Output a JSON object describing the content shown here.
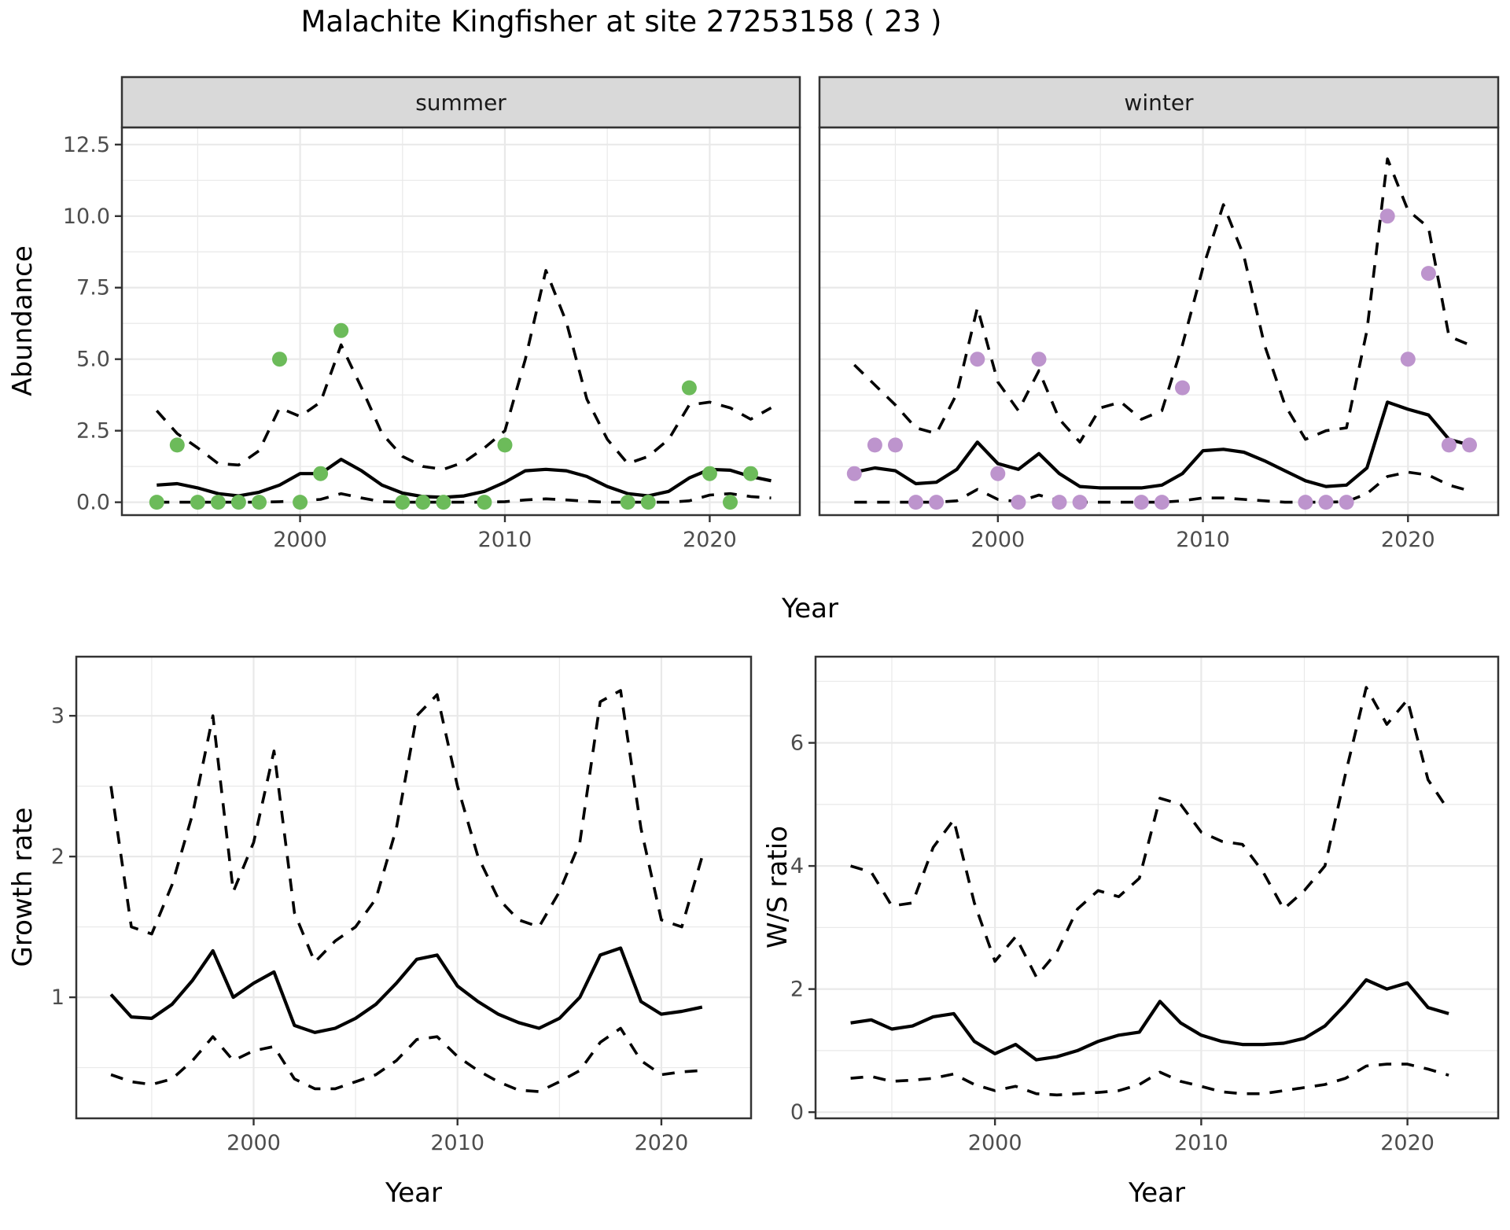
{
  "title": "Malachite Kingfisher at site 27253158 ( 23 )",
  "colors": {
    "summer_points": "#6cbb5a",
    "winter_points": "#bd94cd",
    "line": "#000000",
    "strip_bg": "#d9d9d9",
    "panel_border": "#333333",
    "grid": "#e9e9e9",
    "tick_mark": "#333333",
    "tick_label": "#4d4d4d",
    "panel_bg": "#ffffff"
  },
  "chart_data": [
    {
      "id": "abundance-summer",
      "type": "line",
      "facet_label": "summer",
      "xlabel": "Year",
      "ylabel": "Abundance",
      "xlim": [
        1991.3,
        2024.4
      ],
      "ylim": [
        -0.45,
        13.1
      ],
      "x_ticks": {
        "values": [
          2000,
          2010,
          2020
        ],
        "labels": [
          "2000",
          "2010",
          "2020"
        ]
      },
      "x_minor": [
        1995,
        2005,
        2015
      ],
      "y_ticks": {
        "values": [
          0,
          2.5,
          5,
          7.5,
          10,
          12.5
        ],
        "labels": [
          "0.0",
          "2.5",
          "5.0",
          "7.5",
          "10.0",
          "12.5"
        ]
      },
      "y_minor": [
        1.25,
        3.75,
        6.25,
        8.75,
        11.25
      ],
      "grid": true,
      "legend": false,
      "x": [
        1993,
        1994,
        1995,
        1996,
        1997,
        1998,
        1999,
        2000,
        2001,
        2002,
        2003,
        2004,
        2005,
        2006,
        2007,
        2008,
        2009,
        2010,
        2011,
        2012,
        2013,
        2014,
        2015,
        2016,
        2017,
        2018,
        2019,
        2020,
        2021,
        2022,
        2023
      ],
      "series": [
        {
          "name": "mean",
          "style": "solid",
          "y": [
            0.6,
            0.65,
            0.5,
            0.3,
            0.22,
            0.35,
            0.6,
            1.0,
            1.0,
            1.5,
            1.1,
            0.6,
            0.32,
            0.2,
            0.17,
            0.22,
            0.38,
            0.7,
            1.1,
            1.15,
            1.1,
            0.9,
            0.55,
            0.3,
            0.22,
            0.38,
            0.85,
            1.15,
            1.12,
            0.9,
            0.75
          ]
        },
        {
          "name": "upper-ci",
          "style": "dashed",
          "y": [
            3.2,
            2.4,
            1.9,
            1.35,
            1.3,
            1.8,
            3.3,
            3.0,
            3.5,
            5.5,
            4.0,
            2.4,
            1.6,
            1.25,
            1.15,
            1.4,
            1.9,
            2.5,
            5.0,
            8.1,
            6.3,
            3.6,
            2.2,
            1.35,
            1.6,
            2.2,
            3.4,
            3.5,
            3.3,
            2.9,
            3.3
          ]
        },
        {
          "name": "lower-ci",
          "style": "dashed",
          "y": [
            0,
            0,
            0,
            0,
            0,
            0,
            0.02,
            0.05,
            0.1,
            0.3,
            0.15,
            0.02,
            0,
            0,
            0,
            0,
            0,
            0.02,
            0.08,
            0.12,
            0.08,
            0.03,
            0,
            0,
            0,
            0,
            0.05,
            0.25,
            0.3,
            0.2,
            0.15
          ]
        }
      ],
      "points": {
        "name": "summer-observations",
        "color_key": "summer_points",
        "x": [
          1993,
          1994,
          1995,
          1996,
          1997,
          1998,
          1999,
          2000,
          2001,
          2002,
          2005,
          2006,
          2007,
          2009,
          2010,
          2016,
          2017,
          2019,
          2020,
          2021,
          2022
        ],
        "y": [
          0,
          2,
          0,
          0,
          0,
          0,
          5,
          0,
          1,
          6,
          0,
          0,
          0,
          0,
          2,
          0,
          0,
          4,
          1,
          0,
          1
        ]
      }
    },
    {
      "id": "abundance-winter",
      "type": "line",
      "facet_label": "winter",
      "xlabel": "Year",
      "ylabel": "Abundance",
      "xlim": [
        1991.3,
        2024.4
      ],
      "ylim": [
        -0.45,
        13.1
      ],
      "x_ticks": {
        "values": [
          2000,
          2010,
          2020
        ],
        "labels": [
          "2000",
          "2010",
          "2020"
        ]
      },
      "x_minor": [
        1995,
        2005,
        2015
      ],
      "y_ticks": {
        "values": [
          0,
          2.5,
          5,
          7.5,
          10,
          12.5
        ],
        "labels": [
          "0.0",
          "2.5",
          "5.0",
          "7.5",
          "10.0",
          "12.5"
        ]
      },
      "y_minor": [
        1.25,
        3.75,
        6.25,
        8.75,
        11.25
      ],
      "grid": true,
      "legend": false,
      "x": [
        1993,
        1994,
        1995,
        1996,
        1997,
        1998,
        1999,
        2000,
        2001,
        2002,
        2003,
        2004,
        2005,
        2006,
        2007,
        2008,
        2009,
        2010,
        2011,
        2012,
        2013,
        2014,
        2015,
        2016,
        2017,
        2018,
        2019,
        2020,
        2021,
        2022,
        2023
      ],
      "series": [
        {
          "name": "mean",
          "style": "solid",
          "y": [
            1.05,
            1.2,
            1.1,
            0.65,
            0.7,
            1.15,
            2.1,
            1.35,
            1.15,
            1.7,
            1.0,
            0.55,
            0.5,
            0.5,
            0.5,
            0.6,
            1.0,
            1.8,
            1.85,
            1.75,
            1.45,
            1.1,
            0.75,
            0.55,
            0.6,
            1.2,
            3.5,
            3.25,
            3.05,
            2.2,
            2.0
          ]
        },
        {
          "name": "upper-ci",
          "style": "dashed",
          "y": [
            4.8,
            4.1,
            3.4,
            2.6,
            2.4,
            3.8,
            6.8,
            4.2,
            3.2,
            4.6,
            2.9,
            2.1,
            3.3,
            3.5,
            2.9,
            3.2,
            5.5,
            8.2,
            10.4,
            8.6,
            5.5,
            3.4,
            2.2,
            2.5,
            2.6,
            6.0,
            12.0,
            10.2,
            9.6,
            5.8,
            5.5
          ]
        },
        {
          "name": "lower-ci",
          "style": "dashed",
          "y": [
            0,
            0,
            0,
            0,
            0,
            0.05,
            0.45,
            0.1,
            0.02,
            0.25,
            0.05,
            0,
            0,
            0,
            0,
            0,
            0.05,
            0.15,
            0.15,
            0.1,
            0.05,
            0,
            0,
            0,
            0.02,
            0.3,
            0.9,
            1.05,
            0.95,
            0.6,
            0.4
          ]
        }
      ],
      "points": {
        "name": "winter-observations",
        "color_key": "winter_points",
        "x": [
          1993,
          1994,
          1995,
          1996,
          1997,
          1999,
          2000,
          2001,
          2002,
          2003,
          2004,
          2007,
          2008,
          2009,
          2015,
          2016,
          2017,
          2019,
          2020,
          2021,
          2022,
          2023
        ],
        "y": [
          1,
          2,
          2,
          0,
          0,
          5,
          1,
          0,
          5,
          0,
          0,
          0,
          0,
          4,
          0,
          0,
          0,
          10,
          5,
          8,
          2,
          2
        ]
      }
    },
    {
      "id": "growth-rate",
      "type": "line",
      "facet_label": null,
      "xlabel": "Year",
      "ylabel": "Growth rate",
      "xlim": [
        1991.3,
        2024.4
      ],
      "ylim": [
        0.14,
        3.42
      ],
      "x_ticks": {
        "values": [
          2000,
          2010,
          2020
        ],
        "labels": [
          "2000",
          "2010",
          "2020"
        ]
      },
      "x_minor": [
        1995,
        2005,
        2015
      ],
      "y_ticks": {
        "values": [
          1,
          2,
          3
        ],
        "labels": [
          "1",
          "2",
          "3"
        ]
      },
      "y_minor": [
        0.5,
        1.5,
        2.5
      ],
      "grid": true,
      "legend": false,
      "x": [
        1993,
        1994,
        1995,
        1996,
        1997,
        1998,
        1999,
        2000,
        2001,
        2002,
        2003,
        2004,
        2005,
        2006,
        2007,
        2008,
        2009,
        2010,
        2011,
        2012,
        2013,
        2014,
        2015,
        2016,
        2017,
        2018,
        2019,
        2020,
        2021,
        2022
      ],
      "series": [
        {
          "name": "mean",
          "style": "solid",
          "y": [
            1.02,
            0.86,
            0.85,
            0.95,
            1.12,
            1.33,
            1.0,
            1.1,
            1.18,
            0.8,
            0.75,
            0.78,
            0.85,
            0.95,
            1.1,
            1.27,
            1.3,
            1.08,
            0.97,
            0.88,
            0.82,
            0.78,
            0.85,
            1.0,
            1.3,
            1.35,
            0.97,
            0.88,
            0.9,
            0.93
          ]
        },
        {
          "name": "upper-ci",
          "style": "dashed",
          "y": [
            2.5,
            1.5,
            1.45,
            1.8,
            2.3,
            3.0,
            1.75,
            2.1,
            2.75,
            1.6,
            1.25,
            1.4,
            1.5,
            1.7,
            2.2,
            3.0,
            3.15,
            2.5,
            2.0,
            1.7,
            1.55,
            1.5,
            1.75,
            2.1,
            3.1,
            3.18,
            2.2,
            1.55,
            1.5,
            2.0
          ]
        },
        {
          "name": "lower-ci",
          "style": "dashed",
          "y": [
            0.45,
            0.4,
            0.38,
            0.42,
            0.55,
            0.72,
            0.55,
            0.62,
            0.65,
            0.42,
            0.35,
            0.35,
            0.4,
            0.45,
            0.55,
            0.7,
            0.72,
            0.58,
            0.48,
            0.4,
            0.34,
            0.33,
            0.4,
            0.48,
            0.68,
            0.78,
            0.55,
            0.45,
            0.47,
            0.48
          ]
        }
      ],
      "points": null
    },
    {
      "id": "ws-ratio",
      "type": "line",
      "facet_label": null,
      "xlabel": "Year",
      "ylabel": "W/S ratio",
      "xlim": [
        1991.3,
        2024.4
      ],
      "ylim": [
        -0.1,
        7.4
      ],
      "x_ticks": {
        "values": [
          2000,
          2010,
          2020
        ],
        "labels": [
          "2000",
          "2010",
          "2020"
        ]
      },
      "x_minor": [
        1995,
        2005,
        2015
      ],
      "y_ticks": {
        "values": [
          0,
          2,
          4,
          6
        ],
        "labels": [
          "0",
          "2",
          "4",
          "6"
        ]
      },
      "y_minor": [
        1,
        3,
        5,
        7
      ],
      "grid": true,
      "legend": false,
      "x": [
        1993,
        1994,
        1995,
        1996,
        1997,
        1998,
        1999,
        2000,
        2001,
        2002,
        2003,
        2004,
        2005,
        2006,
        2007,
        2008,
        2009,
        2010,
        2011,
        2012,
        2013,
        2014,
        2015,
        2016,
        2017,
        2018,
        2019,
        2020,
        2021,
        2022
      ],
      "series": [
        {
          "name": "mean",
          "style": "solid",
          "y": [
            1.45,
            1.5,
            1.35,
            1.4,
            1.55,
            1.6,
            1.15,
            0.95,
            1.1,
            0.85,
            0.9,
            1.0,
            1.15,
            1.25,
            1.3,
            1.8,
            1.45,
            1.25,
            1.15,
            1.1,
            1.1,
            1.12,
            1.2,
            1.4,
            1.75,
            2.15,
            2.0,
            2.1,
            1.7,
            1.6
          ]
        },
        {
          "name": "upper-ci",
          "style": "dashed",
          "y": [
            4.0,
            3.9,
            3.35,
            3.4,
            4.3,
            4.75,
            3.4,
            2.45,
            2.85,
            2.2,
            2.6,
            3.3,
            3.6,
            3.5,
            3.8,
            5.1,
            5.0,
            4.55,
            4.4,
            4.35,
            3.9,
            3.3,
            3.6,
            4.0,
            5.5,
            6.9,
            6.3,
            6.7,
            5.4,
            4.9
          ]
        },
        {
          "name": "lower-ci",
          "style": "dashed",
          "y": [
            0.55,
            0.58,
            0.5,
            0.52,
            0.55,
            0.62,
            0.45,
            0.35,
            0.42,
            0.3,
            0.28,
            0.3,
            0.32,
            0.35,
            0.45,
            0.65,
            0.5,
            0.42,
            0.33,
            0.3,
            0.3,
            0.35,
            0.4,
            0.45,
            0.55,
            0.75,
            0.78,
            0.78,
            0.7,
            0.6
          ]
        }
      ],
      "points": null
    }
  ]
}
